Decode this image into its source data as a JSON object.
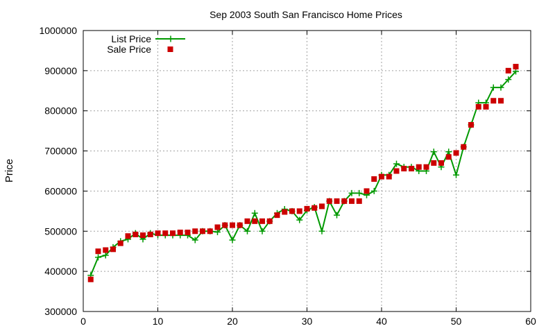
{
  "chart_data": {
    "type": "scatter",
    "title": "Sep 2003 South San Francisco Home Prices",
    "xlabel": "",
    "ylabel": "Price",
    "xlim": [
      0,
      60
    ],
    "ylim": [
      300000,
      1000000
    ],
    "xticks": [
      0,
      10,
      20,
      30,
      40,
      50,
      60
    ],
    "yticks": [
      300000,
      400000,
      500000,
      600000,
      700000,
      800000,
      900000,
      1000000
    ],
    "grid": true,
    "legend_position": "top-left",
    "series": [
      {
        "name": "List Price",
        "style": "line with + markers",
        "color": "#009900",
        "x": [
          1,
          2,
          3,
          4,
          5,
          6,
          7,
          8,
          9,
          10,
          11,
          12,
          13,
          14,
          15,
          16,
          17,
          18,
          19,
          20,
          21,
          22,
          23,
          24,
          25,
          26,
          27,
          28,
          29,
          30,
          31,
          32,
          33,
          34,
          35,
          36,
          37,
          38,
          39,
          40,
          41,
          42,
          43,
          44,
          45,
          46,
          47,
          48,
          49,
          50,
          51,
          52,
          53,
          54,
          55,
          56,
          57,
          58
        ],
        "values": [
          390000,
          435000,
          440000,
          460000,
          475000,
          480000,
          495000,
          480000,
          495000,
          490000,
          490000,
          490000,
          490000,
          490000,
          478000,
          500000,
          500000,
          498000,
          515000,
          478000,
          515000,
          500000,
          545000,
          500000,
          525000,
          545000,
          555000,
          550000,
          528000,
          552000,
          560000,
          500000,
          575000,
          540000,
          575000,
          595000,
          595000,
          590000,
          600000,
          640000,
          640000,
          668000,
          660000,
          660000,
          650000,
          650000,
          698000,
          660000,
          698000,
          640000,
          710000,
          765000,
          820000,
          820000,
          858000,
          858000,
          878000,
          898000
        ]
      },
      {
        "name": "Sale Price",
        "style": "filled square points",
        "color": "#cc0000",
        "x": [
          1,
          2,
          3,
          4,
          5,
          6,
          7,
          8,
          9,
          10,
          11,
          12,
          13,
          14,
          15,
          16,
          17,
          18,
          19,
          20,
          21,
          22,
          23,
          24,
          25,
          26,
          27,
          28,
          29,
          30,
          31,
          32,
          33,
          34,
          35,
          36,
          37,
          38,
          39,
          40,
          41,
          42,
          43,
          44,
          45,
          46,
          47,
          48,
          49,
          50,
          51,
          52,
          53,
          54,
          55,
          56,
          57,
          58
        ],
        "values": [
          380000,
          450000,
          453000,
          455000,
          470000,
          488000,
          492000,
          490000,
          492000,
          495000,
          495000,
          495000,
          497000,
          497000,
          500000,
          500000,
          500000,
          510000,
          515000,
          515000,
          515000,
          525000,
          525000,
          525000,
          525000,
          540000,
          548000,
          550000,
          550000,
          556000,
          558000,
          562000,
          575000,
          575000,
          575000,
          575000,
          575000,
          600000,
          630000,
          636000,
          636000,
          650000,
          656000,
          656000,
          660000,
          660000,
          670000,
          670000,
          685000,
          695000,
          710000,
          765000,
          810000,
          810000,
          825000,
          825000,
          900000,
          910000
        ]
      }
    ]
  }
}
